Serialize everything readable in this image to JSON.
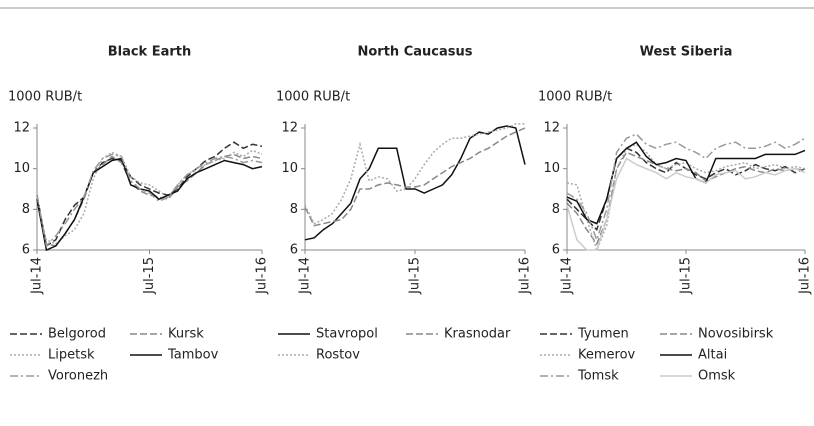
{
  "chart_data": [
    {
      "type": "line",
      "title": "Black Earth",
      "y_label": "1000 RUB/t",
      "x": [
        "2014-07",
        "2014-08",
        "2014-09",
        "2014-10",
        "2014-11",
        "2014-12",
        "2015-01",
        "2015-02",
        "2015-03",
        "2015-04",
        "2015-05",
        "2015-06",
        "2015-07",
        "2015-08",
        "2015-09",
        "2015-10",
        "2015-11",
        "2015-12",
        "2016-01",
        "2016-02",
        "2016-03",
        "2016-04",
        "2016-05",
        "2016-06",
        "2016-07"
      ],
      "xlim": [
        "2014-07",
        "2016-07"
      ],
      "xticks": [
        {
          "value": "2014-07",
          "label": "Jul-14"
        },
        {
          "value": "2015-07",
          "label": "Jul-15"
        },
        {
          "value": "2016-07",
          "label": "Jul-16"
        }
      ],
      "ylim": [
        6,
        12
      ],
      "yticks": [
        6,
        8,
        10,
        12
      ],
      "series": [
        {
          "name": "Belgorod",
          "color": "#333333",
          "style": "dashed",
          "values": [
            8.7,
            6.2,
            6.5,
            7.5,
            8.2,
            8.6,
            9.8,
            10.3,
            10.5,
            10.4,
            9.6,
            9.2,
            9.0,
            8.8,
            8.7,
            9.0,
            9.6,
            10.0,
            10.4,
            10.6,
            11.0,
            11.3,
            11.0,
            11.2,
            11.1
          ]
        },
        {
          "name": "Kursk",
          "color": "#888888",
          "style": "dashed",
          "values": [
            8.5,
            6.3,
            6.2,
            6.8,
            7.5,
            8.5,
            9.8,
            10.2,
            10.6,
            10.3,
            9.3,
            8.9,
            8.7,
            8.6,
            8.5,
            9.1,
            9.4,
            9.8,
            10.2,
            10.4,
            10.6,
            10.7,
            10.5,
            10.6,
            10.5
          ]
        },
        {
          "name": "Lipetsk",
          "color": "#aaaaaa",
          "style": "dotted",
          "values": [
            8.3,
            6.5,
            6.3,
            6.7,
            7.0,
            7.8,
            9.5,
            10.5,
            10.8,
            10.6,
            9.6,
            9.3,
            9.2,
            8.9,
            8.6,
            9.2,
            9.7,
            10.0,
            10.2,
            10.4,
            10.5,
            10.8,
            10.6,
            10.9,
            10.7
          ]
        },
        {
          "name": "Tambov",
          "color": "#111111",
          "style": "solid",
          "values": [
            8.5,
            6.0,
            6.2,
            6.8,
            7.5,
            8.6,
            9.8,
            10.1,
            10.4,
            10.5,
            9.2,
            9.0,
            8.9,
            8.5,
            8.7,
            8.9,
            9.5,
            9.8,
            10.0,
            10.2,
            10.4,
            10.3,
            10.2,
            10.0,
            10.1
          ]
        },
        {
          "name": "Voronezh",
          "color": "#999999",
          "style": "dashdot",
          "values": [
            8.7,
            6.2,
            6.7,
            7.3,
            8.0,
            8.6,
            9.9,
            10.5,
            10.7,
            10.6,
            9.4,
            9.0,
            8.8,
            8.4,
            8.6,
            9.2,
            9.7,
            10.0,
            10.3,
            10.5,
            10.6,
            10.5,
            10.3,
            10.4,
            10.3
          ]
        }
      ]
    },
    {
      "type": "line",
      "title": "North Caucasus",
      "y_label": "1000 RUB/t",
      "x": [
        "2014-07",
        "2014-08",
        "2014-09",
        "2014-10",
        "2014-11",
        "2014-12",
        "2015-01",
        "2015-02",
        "2015-03",
        "2015-04",
        "2015-05",
        "2015-06",
        "2015-07",
        "2015-08",
        "2015-09",
        "2015-10",
        "2015-11",
        "2015-12",
        "2016-01",
        "2016-02",
        "2016-03",
        "2016-04",
        "2016-05",
        "2016-06",
        "2016-07"
      ],
      "xlim": [
        "2014-07",
        "2016-07"
      ],
      "xticks": [
        {
          "value": "2014-07",
          "label": "Jul-14"
        },
        {
          "value": "2015-07",
          "label": "Jul-15"
        },
        {
          "value": "2016-07",
          "label": "Jul-16"
        }
      ],
      "ylim": [
        6,
        12
      ],
      "yticks": [
        6,
        8,
        10,
        12
      ],
      "series": [
        {
          "name": "Stavropol",
          "color": "#111111",
          "style": "solid",
          "values": [
            6.5,
            6.6,
            7.0,
            7.3,
            7.8,
            8.3,
            9.5,
            10.0,
            11.0,
            11.0,
            11.0,
            9.0,
            9.0,
            8.8,
            9.0,
            9.2,
            9.7,
            10.5,
            11.5,
            11.8,
            11.7,
            12.0,
            12.1,
            12.0,
            10.2
          ]
        },
        {
          "name": "Krasnodar",
          "color": "#888888",
          "style": "dashed",
          "values": [
            8.1,
            7.2,
            7.3,
            7.4,
            7.5,
            8.0,
            9.0,
            9.0,
            9.2,
            9.3,
            9.2,
            9.1,
            9.1,
            9.2,
            9.5,
            9.8,
            10.1,
            10.3,
            10.5,
            10.8,
            11.0,
            11.3,
            11.6,
            11.8,
            12.0
          ]
        },
        {
          "name": "Rostov",
          "color": "#aaaaaa",
          "style": "dotted",
          "values": [
            8.2,
            7.3,
            7.5,
            7.8,
            8.5,
            9.5,
            11.2,
            9.4,
            9.6,
            9.5,
            8.9,
            9.0,
            9.5,
            10.2,
            10.8,
            11.2,
            11.5,
            11.5,
            11.6,
            11.7,
            11.8,
            11.9,
            12.0,
            12.2,
            12.2
          ]
        }
      ]
    },
    {
      "type": "line",
      "title": "West Siberia",
      "y_label": "1000 RUB/t",
      "x": [
        "2014-07",
        "2014-08",
        "2014-09",
        "2014-10",
        "2014-11",
        "2014-12",
        "2015-01",
        "2015-02",
        "2015-03",
        "2015-04",
        "2015-05",
        "2015-06",
        "2015-07",
        "2015-08",
        "2015-09",
        "2015-10",
        "2015-11",
        "2015-12",
        "2016-01",
        "2016-02",
        "2016-03",
        "2016-04",
        "2016-05",
        "2016-06",
        "2016-07"
      ],
      "xlim": [
        "2014-07",
        "2016-07"
      ],
      "xticks": [
        {
          "value": "2014-07",
          "label": "Jul-14"
        },
        {
          "value": "2015-07",
          "label": "Jul-15"
        },
        {
          "value": "2016-07",
          "label": "Jul-16"
        }
      ],
      "ylim": [
        6,
        12
      ],
      "yticks": [
        6,
        8,
        10,
        12
      ],
      "series": [
        {
          "name": "Tyumen",
          "color": "#333333",
          "style": "dashed",
          "values": [
            8.5,
            8.0,
            7.5,
            7.0,
            8.5,
            10.5,
            11.0,
            10.8,
            10.3,
            10.0,
            9.8,
            10.3,
            10.0,
            9.7,
            9.5,
            9.8,
            10.0,
            9.7,
            9.9,
            10.2,
            10.0,
            9.9,
            10.1,
            9.8,
            10.0
          ]
        },
        {
          "name": "Novosibirsk",
          "color": "#888888",
          "style": "dashed",
          "values": [
            8.3,
            7.8,
            7.0,
            6.3,
            7.5,
            10.0,
            10.8,
            10.6,
            10.4,
            10.2,
            10.0,
            9.9,
            10.0,
            9.8,
            9.4,
            9.6,
            9.8,
            10.0,
            10.1,
            9.9,
            9.8,
            10.0,
            9.9,
            10.0,
            9.9
          ]
        },
        {
          "name": "Kemerov",
          "color": "#aaaaaa",
          "style": "dotted",
          "values": [
            9.3,
            9.2,
            7.5,
            6.0,
            7.2,
            10.0,
            11.0,
            11.2,
            10.8,
            10.2,
            10.0,
            10.2,
            10.3,
            10.0,
            9.8,
            9.9,
            10.1,
            10.2,
            10.3,
            10.0,
            10.1,
            10.2,
            10.0,
            10.1,
            10.0
          ]
        },
        {
          "name": "Altai",
          "color": "#111111",
          "style": "solid",
          "values": [
            8.6,
            8.4,
            7.5,
            7.3,
            8.5,
            10.5,
            11.0,
            11.3,
            10.6,
            10.2,
            10.3,
            10.5,
            10.4,
            9.5,
            9.3,
            10.5,
            10.5,
            10.5,
            10.5,
            10.5,
            10.7,
            10.7,
            10.7,
            10.7,
            10.9
          ]
        },
        {
          "name": "Tomsk",
          "color": "#999999",
          "style": "dashdot",
          "values": [
            8.8,
            8.5,
            7.8,
            6.5,
            8.0,
            10.8,
            11.5,
            11.7,
            11.2,
            11.0,
            11.2,
            11.3,
            11.0,
            10.8,
            10.5,
            11.0,
            11.2,
            11.3,
            11.0,
            11.0,
            11.1,
            11.3,
            11.0,
            11.2,
            11.5
          ]
        },
        {
          "name": "Omsk",
          "color": "#cccccc",
          "style": "solid",
          "values": [
            8.2,
            6.5,
            6.0,
            6.0,
            7.5,
            9.5,
            10.5,
            10.2,
            10.0,
            9.8,
            9.5,
            9.8,
            9.6,
            9.5,
            9.3,
            9.7,
            9.8,
            9.9,
            9.5,
            9.6,
            9.8,
            9.7,
            9.9,
            10.0,
            9.8
          ]
        }
      ]
    }
  ]
}
